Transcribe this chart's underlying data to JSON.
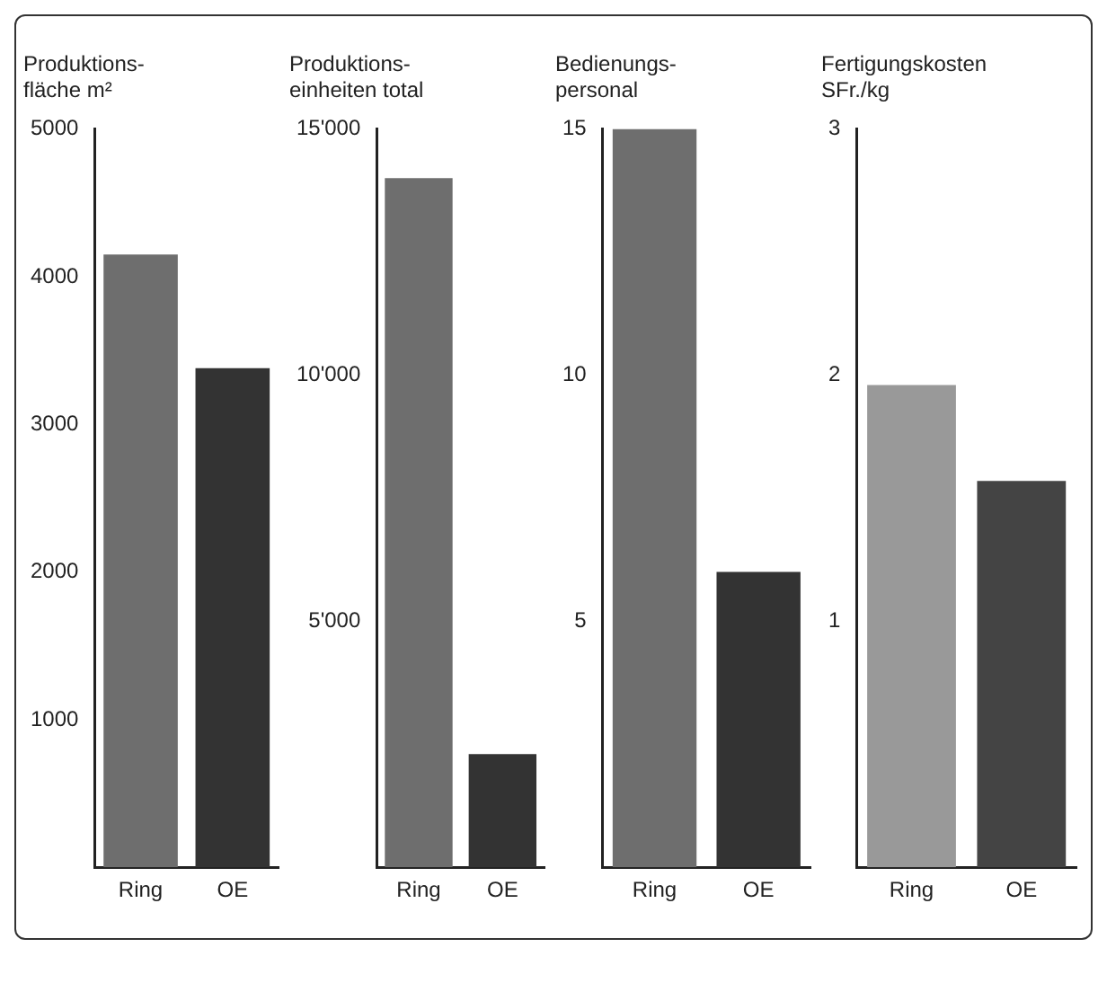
{
  "chart_data": [
    {
      "type": "bar",
      "title": "Produktions-\nfläche m²",
      "categories": [
        "Ring",
        "OE"
      ],
      "values": [
        4150,
        3380
      ],
      "colors": [
        "#6e6e6e",
        "#333333"
      ],
      "ylim": [
        0,
        5000
      ],
      "yticks": [
        1000,
        2000,
        3000,
        4000,
        5000
      ]
    },
    {
      "type": "bar",
      "title": "Produktions-\neinheiten total",
      "categories": [
        "Ring",
        "OE"
      ],
      "values": [
        14000,
        2300
      ],
      "colors": [
        "#6e6e6e",
        "#333333"
      ],
      "ylim": [
        0,
        15000
      ],
      "yticks": [
        {
          "value": 5000,
          "label": "5'000"
        },
        {
          "value": 10000,
          "label": "10'000"
        },
        {
          "value": 15000,
          "label": "15'000"
        }
      ]
    },
    {
      "type": "bar",
      "title": "Bedienungs-\npersonal",
      "categories": [
        "Ring",
        "OE"
      ],
      "values": [
        15,
        6
      ],
      "colors": [
        "#6e6e6e",
        "#333333"
      ],
      "ylim": [
        0,
        15
      ],
      "yticks": [
        5,
        10,
        15
      ]
    },
    {
      "type": "bar",
      "title": "Fertigungskosten\nSFr./kg",
      "categories": [
        "Ring",
        "OE"
      ],
      "values": [
        1.96,
        1.57
      ],
      "colors": [
        "#999999",
        "#444444"
      ],
      "ylim": [
        0,
        3
      ],
      "yticks": [
        1,
        2,
        3
      ]
    }
  ]
}
